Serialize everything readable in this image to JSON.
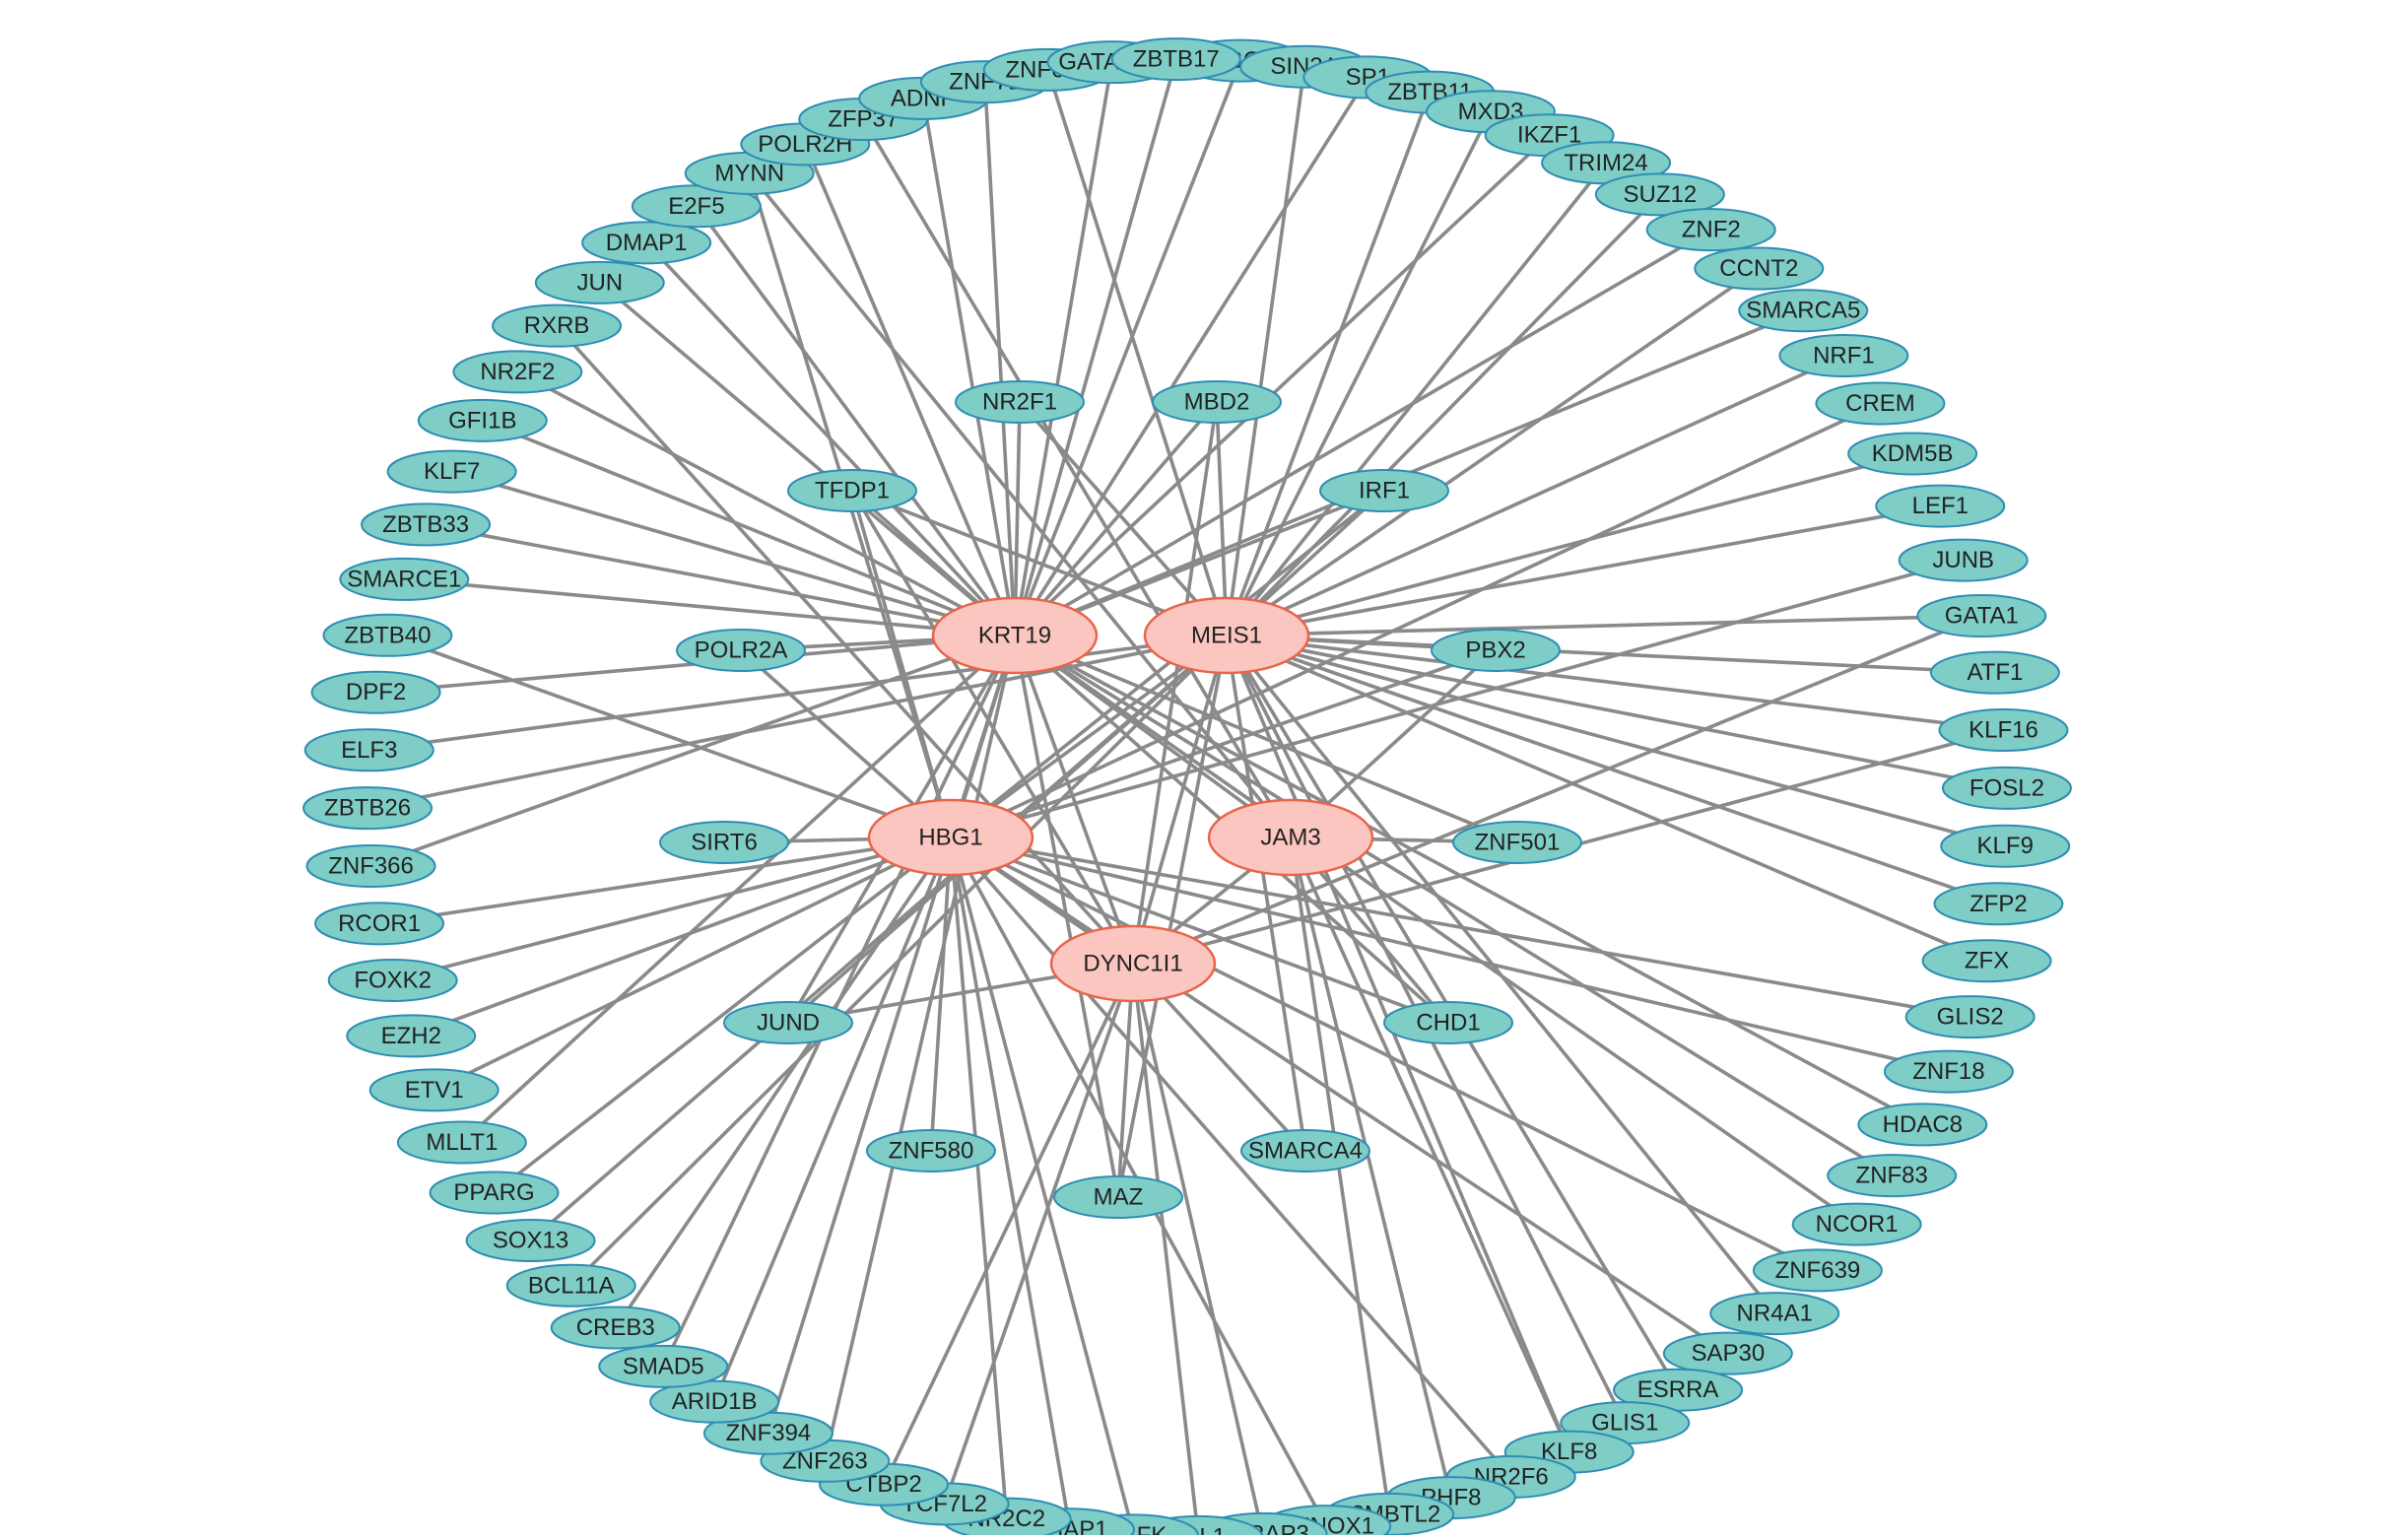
{
  "colors": {
    "edge": "#8a8a8a",
    "node_fill": "#7ecec7",
    "node_stroke": "#2f8db3",
    "hub_fill": "#fbc5c0",
    "hub_stroke": "#e8654a",
    "label": "#222222"
  },
  "hubs": [
    "KRT19",
    "MEIS1",
    "HBG1",
    "JAM3",
    "DYNC1I1"
  ],
  "inner_nodes": [
    "NR2F1",
    "MBD2",
    "TFDP1",
    "IRF1",
    "POLR2A",
    "PBX2",
    "SIRT6",
    "ZNF501",
    "JUND",
    "CHD1",
    "ZNF580",
    "SMARCA4",
    "MAZ"
  ],
  "ring_nodes": [
    "HMBOX1",
    "SIN3A",
    "SP1",
    "ZBTB11",
    "MXD3",
    "IKZF1",
    "TRIM24",
    "SUZ12",
    "ZNF2",
    "CCNT2",
    "SMARCA5",
    "NRF1",
    "CREM",
    "KDM5B",
    "LEF1",
    "JUNB",
    "GATA1",
    "ATF1",
    "KLF16",
    "FOSL2",
    "KLF9",
    "ZFP2",
    "ZFX",
    "GLIS2",
    "ZNF18",
    "HDAC8",
    "ZNF83",
    "NCOR1",
    "ZNF639",
    "NR4A1",
    "SAP30",
    "ESRRA",
    "GLIS1",
    "KLF8",
    "NR2F6",
    "PHF8",
    "L3MBTL2",
    "PKNOX1",
    "THRAP3",
    "TAL1",
    "MAFK",
    "THAP1",
    "NR2C2",
    "TCF7L2",
    "CTBP2",
    "ZNF263",
    "ZNF394",
    "ARID1B",
    "SMAD5",
    "CREB3",
    "BCL11A",
    "SOX13",
    "PPARG",
    "MLLT1",
    "ETV1",
    "EZH2",
    "FOXK2",
    "RCOR1",
    "ZNF366",
    "ZBTB26",
    "ELF3",
    "DPF2",
    "ZBTB40",
    "SMARCE1",
    "ZBTB33",
    "KLF7",
    "GFI1B",
    "NR2F2",
    "RXRB",
    "JUN",
    "DMAP1",
    "E2F5",
    "MYNN",
    "POLR2H",
    "ZFP37",
    "ADNP",
    "ZNF71",
    "ZNF610",
    "GATAD2A",
    "ZBTB17"
  ],
  "edges": [
    [
      "KRT19",
      "ZBTB17"
    ],
    [
      "KRT19",
      "HMBOX1"
    ],
    [
      "KRT19",
      "GATAD2A"
    ],
    [
      "KRT19",
      "ZNF71"
    ],
    [
      "KRT19",
      "ADNP"
    ],
    [
      "KRT19",
      "POLR2H"
    ],
    [
      "KRT19",
      "E2F5"
    ],
    [
      "KRT19",
      "DMAP1"
    ],
    [
      "KRT19",
      "JUN"
    ],
    [
      "KRT19",
      "NR2F2"
    ],
    [
      "KRT19",
      "GFI1B"
    ],
    [
      "KRT19",
      "KLF7"
    ],
    [
      "KRT19",
      "ZBTB33"
    ],
    [
      "KRT19",
      "SMARCE1"
    ],
    [
      "KRT19",
      "POLR2A"
    ],
    [
      "KRT19",
      "DPF2"
    ],
    [
      "KRT19",
      "ZNF366"
    ],
    [
      "KRT19",
      "ZNF394"
    ],
    [
      "KRT19",
      "SP1"
    ],
    [
      "KRT19",
      "IKZF1"
    ],
    [
      "KRT19",
      "ZNF2"
    ],
    [
      "KRT19",
      "SMARCA5"
    ],
    [
      "KRT19",
      "MBD2"
    ],
    [
      "KRT19",
      "NR2F1"
    ],
    [
      "KRT19",
      "TFDP1"
    ],
    [
      "KRT19",
      "IRF1"
    ],
    [
      "KRT19",
      "HDAC8"
    ],
    [
      "KRT19",
      "ZNF83"
    ],
    [
      "KRT19",
      "NCOR1"
    ],
    [
      "KRT19",
      "CHD1"
    ],
    [
      "KRT19",
      "ZNF501"
    ],
    [
      "KRT19",
      "MAZ"
    ],
    [
      "KRT19",
      "ZNF263"
    ],
    [
      "KRT19",
      "SMAD5"
    ],
    [
      "KRT19",
      "MLLT1"
    ],
    [
      "KRT19",
      "JUND"
    ],
    [
      "KRT19",
      "HBG1"
    ],
    [
      "KRT19",
      "JAM3"
    ],
    [
      "KRT19",
      "DYNC1I1"
    ],
    [
      "MEIS1",
      "ZNF610"
    ],
    [
      "MEIS1",
      "SIN3A"
    ],
    [
      "MEIS1",
      "ZBTB11"
    ],
    [
      "MEIS1",
      "MXD3"
    ],
    [
      "MEIS1",
      "TRIM24"
    ],
    [
      "MEIS1",
      "SUZ12"
    ],
    [
      "MEIS1",
      "CCNT2"
    ],
    [
      "MEIS1",
      "NRF1"
    ],
    [
      "MEIS1",
      "KDM5B"
    ],
    [
      "MEIS1",
      "LEF1"
    ],
    [
      "MEIS1",
      "GATA1"
    ],
    [
      "MEIS1",
      "ATF1"
    ],
    [
      "MEIS1",
      "KLF16"
    ],
    [
      "MEIS1",
      "FOSL2"
    ],
    [
      "MEIS1",
      "KLF9"
    ],
    [
      "MEIS1",
      "ZFP2"
    ],
    [
      "MEIS1",
      "ZFX"
    ],
    [
      "MEIS1",
      "MBD2"
    ],
    [
      "MEIS1",
      "TFDP1"
    ],
    [
      "MEIS1",
      "NR2F1"
    ],
    [
      "MEIS1",
      "IRF1"
    ],
    [
      "MEIS1",
      "PBX2"
    ],
    [
      "MEIS1",
      "ELF3"
    ],
    [
      "MEIS1",
      "ZBTB26"
    ],
    [
      "MEIS1",
      "GLIS1"
    ],
    [
      "MEIS1",
      "NR4A1"
    ],
    [
      "MEIS1",
      "ESRRA"
    ],
    [
      "MEIS1",
      "BCL11A"
    ],
    [
      "MEIS1",
      "SOX13"
    ],
    [
      "MEIS1",
      "JUND"
    ],
    [
      "MEIS1",
      "HBG1"
    ],
    [
      "MEIS1",
      "SMARCA4"
    ],
    [
      "MEIS1",
      "MAZ"
    ],
    [
      "MEIS1",
      "DYNC1I1"
    ],
    [
      "MEIS1",
      "KLF8"
    ],
    [
      "HBG1",
      "ZBTB40"
    ],
    [
      "HBG1",
      "SIRT6"
    ],
    [
      "HBG1",
      "RCOR1"
    ],
    [
      "HBG1",
      "FOXK2"
    ],
    [
      "HBG1",
      "EZH2"
    ],
    [
      "HBG1",
      "ETV1"
    ],
    [
      "HBG1",
      "PPARG"
    ],
    [
      "HBG1",
      "CREB3"
    ],
    [
      "HBG1",
      "ARID1B"
    ],
    [
      "HBG1",
      "ZNF580"
    ],
    [
      "HBG1",
      "NR2C2"
    ],
    [
      "HBG1",
      "MAFK"
    ],
    [
      "HBG1",
      "PKNOX1"
    ],
    [
      "HBG1",
      "NR2F6"
    ],
    [
      "HBG1",
      "ZNF639"
    ],
    [
      "HBG1",
      "SAP30"
    ],
    [
      "HBG1",
      "ZNF18"
    ],
    [
      "HBG1",
      "GLIS2"
    ],
    [
      "HBG1",
      "JUNB"
    ],
    [
      "HBG1",
      "CREM"
    ],
    [
      "HBG1",
      "PBX2"
    ],
    [
      "HBG1",
      "MYNN"
    ],
    [
      "HBG1",
      "TFDP1"
    ],
    [
      "HBG1",
      "POLR2A"
    ],
    [
      "HBG1",
      "IRF1"
    ],
    [
      "HBG1",
      "CHD1"
    ],
    [
      "HBG1",
      "THAP1"
    ],
    [
      "HBG1",
      "DYNC1I1"
    ],
    [
      "JAM3",
      "ZNF501"
    ],
    [
      "JAM3",
      "CHD1"
    ],
    [
      "JAM3",
      "PHF8"
    ],
    [
      "JAM3",
      "L3MBTL2"
    ],
    [
      "JAM3",
      "KLF8"
    ],
    [
      "JAM3",
      "MYNN"
    ],
    [
      "JAM3",
      "ZFP37"
    ],
    [
      "JAM3",
      "PBX2"
    ],
    [
      "JAM3",
      "DYNC1I1"
    ],
    [
      "DYNC1I1",
      "TCF7L2"
    ],
    [
      "DYNC1I1",
      "CTBP2"
    ],
    [
      "DYNC1I1",
      "TAL1"
    ],
    [
      "DYNC1I1",
      "THRAP3"
    ],
    [
      "DYNC1I1",
      "SMARCA4"
    ],
    [
      "DYNC1I1",
      "MAZ"
    ],
    [
      "DYNC1I1",
      "RXRB"
    ],
    [
      "DYNC1I1",
      "MBD2"
    ],
    [
      "DYNC1I1",
      "TFDP1"
    ],
    [
      "DYNC1I1",
      "KLF16"
    ],
    [
      "DYNC1I1",
      "JUND"
    ],
    [
      "DYNC1I1",
      "GATA1"
    ]
  ]
}
